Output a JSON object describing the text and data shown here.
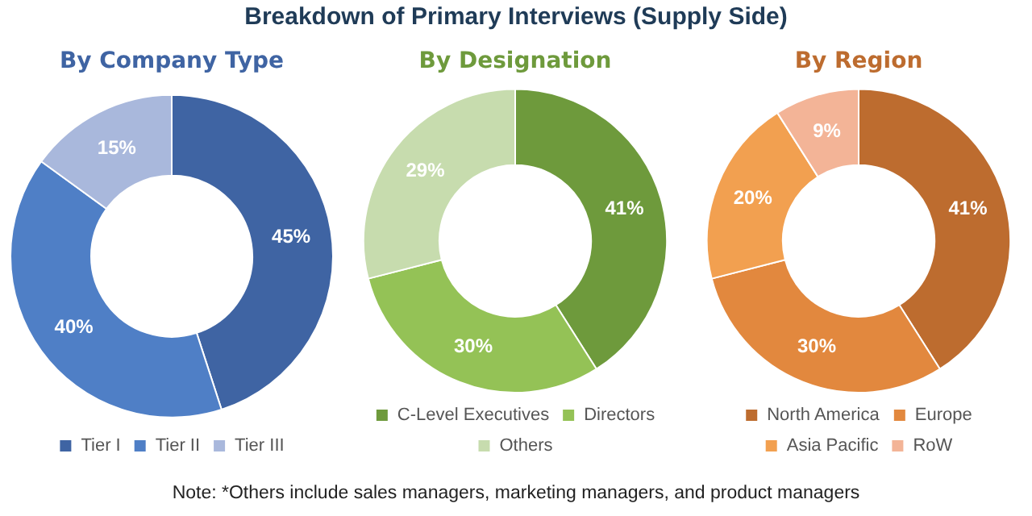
{
  "chart_data": [
    {
      "type": "donut",
      "title": "By Company Type",
      "annotations": [
        "Breakdown of Primary Interviews (Supply Side)"
      ],
      "categories": [
        "Tier I",
        "Tier II",
        "Tier III"
      ],
      "values": [
        45,
        40,
        15
      ],
      "value_labels": [
        "45%",
        "40%",
        "15%"
      ],
      "colors": [
        "#3f64a3",
        "#4f7fc6",
        "#a9b8dc"
      ],
      "legend": "bottom"
    },
    {
      "type": "donut",
      "title": "By Designation",
      "annotations": [
        "Note: *Others include sales managers, marketing managers, and product managers"
      ],
      "categories": [
        "C-Level Executives",
        "Directors",
        "Others"
      ],
      "values": [
        41,
        30,
        29
      ],
      "value_labels": [
        "41%",
        "30%",
        "29%"
      ],
      "colors": [
        "#6e9a3c",
        "#94c256",
        "#c7dcae"
      ],
      "legend": "bottom"
    },
    {
      "type": "donut",
      "title": "By Region",
      "categories": [
        "North America",
        "Europe",
        "Asia Pacific",
        "RoW"
      ],
      "values": [
        41,
        30,
        20,
        9
      ],
      "value_labels": [
        "41%",
        "30%",
        "20%",
        "9%"
      ],
      "colors": [
        "#bd6c2f",
        "#e2883e",
        "#f2a050",
        "#f3b497"
      ],
      "legend": "bottom"
    }
  ]
}
